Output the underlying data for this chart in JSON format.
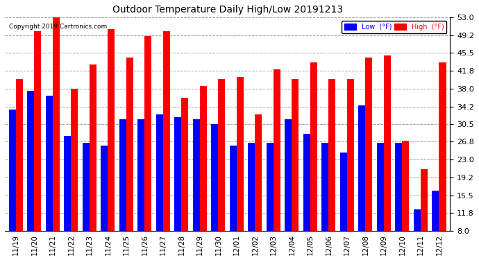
{
  "title": "Outdoor Temperature Daily High/Low 20191213",
  "copyright": "Copyright 2019 Cartronics.com",
  "legend_low": "Low  (°F)",
  "legend_high": "High  (°F)",
  "low_color": "#0000ff",
  "high_color": "#ff0000",
  "background_color": "#ffffff",
  "grid_color": "#888888",
  "ylim": [
    8.0,
    53.0
  ],
  "yticks": [
    8.0,
    11.8,
    15.5,
    19.2,
    23.0,
    26.8,
    30.5,
    34.2,
    38.0,
    41.8,
    45.5,
    49.2,
    53.0
  ],
  "dates": [
    "11/19",
    "11/20",
    "11/21",
    "11/22",
    "11/23",
    "11/24",
    "11/25",
    "11/26",
    "11/27",
    "11/28",
    "11/29",
    "11/30",
    "12/01",
    "12/02",
    "12/03",
    "12/04",
    "12/05",
    "12/06",
    "12/07",
    "12/08",
    "12/09",
    "12/10",
    "12/11",
    "12/12"
  ],
  "lows": [
    33.5,
    37.5,
    36.5,
    28.0,
    26.5,
    26.0,
    31.5,
    31.5,
    32.5,
    32.0,
    31.5,
    30.5,
    26.0,
    26.5,
    26.5,
    31.5,
    28.5,
    26.5,
    24.5,
    34.5,
    26.5,
    26.5,
    12.5,
    16.5
  ],
  "highs": [
    40.0,
    50.0,
    53.5,
    38.0,
    43.0,
    50.5,
    44.5,
    49.0,
    50.0,
    36.0,
    38.5,
    40.0,
    40.5,
    32.5,
    42.0,
    40.0,
    43.5,
    40.0,
    40.0,
    44.5,
    45.0,
    27.0,
    21.0,
    43.5
  ]
}
